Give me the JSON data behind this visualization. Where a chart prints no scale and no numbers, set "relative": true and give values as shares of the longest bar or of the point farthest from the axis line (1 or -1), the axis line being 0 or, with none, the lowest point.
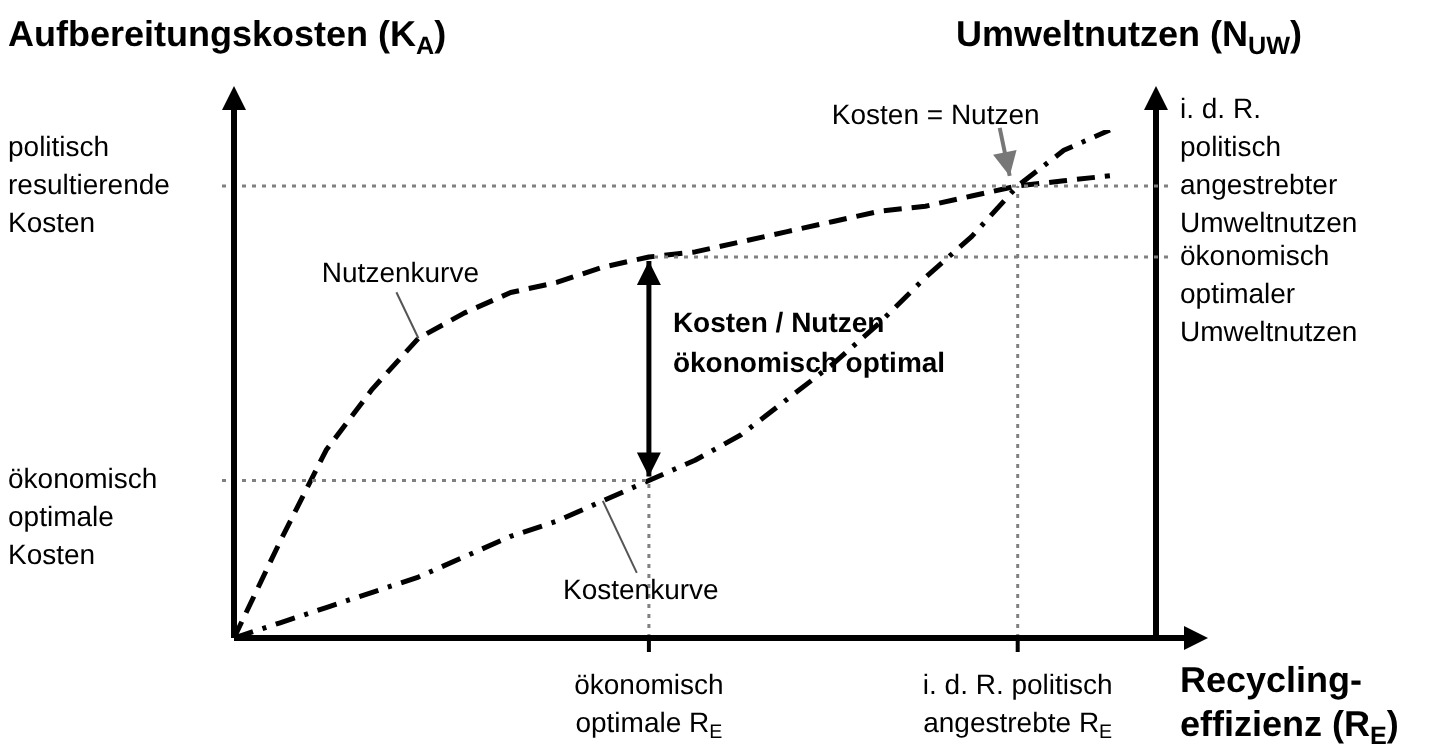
{
  "chart_data": {
    "type": "line",
    "relative": true,
    "ylabel": "Aufbereitungskosten (K$_{A}$)",
    "y2label": "Umweltnutzen (N$_{UW}$)",
    "xlabel": "Recycling-\neffizienz (R$_{E}$)",
    "categories": [
      null,
      null,
      null,
      null,
      null,
      null,
      null,
      null,
      null,
      "ökonomisch optimale R$_{E}$",
      null,
      null,
      null,
      null,
      null,
      null,
      null,
      "i. d. R. politisch angestrebte R$_{E}$",
      null,
      null,
      null
    ],
    "series": [
      {
        "color": "#000000",
        "line_style": "dashed",
        "values": [
          0,
          0.19,
          0.37,
          0.49,
          0.59,
          0.64,
          0.68,
          0.7,
          0.73,
          0.75,
          0.76,
          0.78,
          0.8,
          0.82,
          0.84,
          0.85,
          0.87,
          0.89,
          0.9,
          0.91,
          null
        ]
      },
      {
        "color": "#000000",
        "line_style": "dashdot",
        "values": [
          0,
          0.03,
          0.06,
          0.09,
          0.12,
          0.16,
          0.2,
          0.23,
          0.27,
          0.31,
          0.35,
          0.4,
          0.47,
          0.54,
          0.62,
          0.71,
          0.79,
          0.89,
          0.96,
          1,
          null
        ]
      }
    ],
    "ref_lines": [
      {
        "axis": "y",
        "value": 0.31,
        "label": "ökonomisch optimale Kosten",
        "color": "#808080",
        "line_style": "dotted"
      },
      {
        "axis": "y",
        "value": 0.89,
        "label": "politisch resultierende Kosten",
        "color": "#808080",
        "line_style": "dotted"
      }
    ],
    "annotations": [
      "Nutzenkurve",
      "Kostenkurve",
      "Kosten = Nutzen",
      "Kosten / Nutzen\nökonomisch optimal",
      "i. d. R. politisch angestrebter Umweltnutzen",
      "ökonomisch optimaler Umweltnutzen"
    ]
  }
}
